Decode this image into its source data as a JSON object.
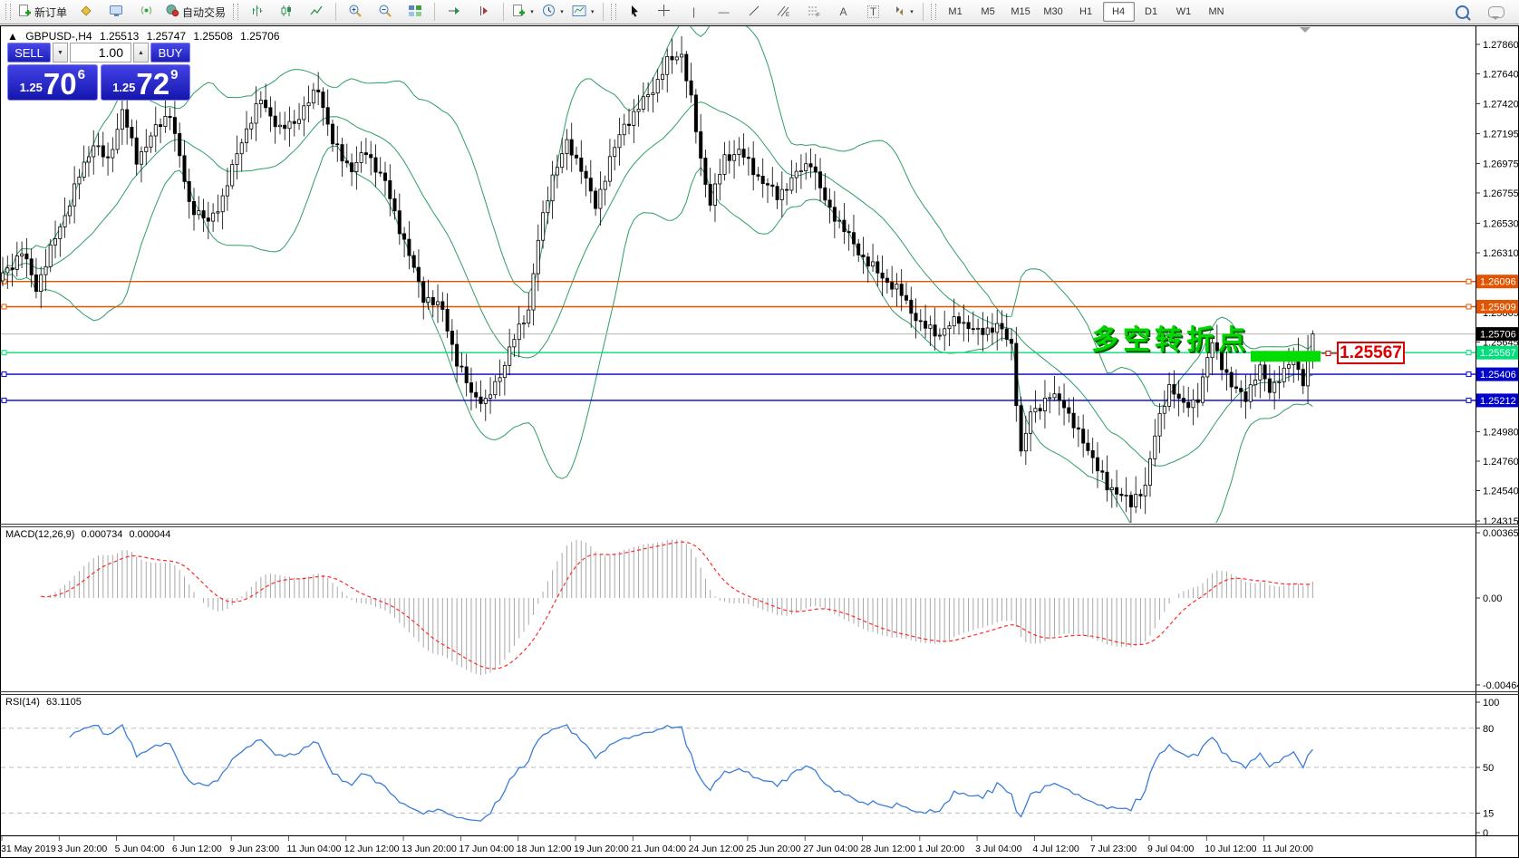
{
  "toolbar": {
    "new_order_label": "新订单",
    "autotrading_label": "自动交易",
    "glyphs": {
      "caret": "▾",
      "crosshair": "+",
      "vline": "|",
      "hline": "—",
      "trendline": "/",
      "channel": "//",
      "channel_sub": "E",
      "fibo_sub": "F",
      "text_tool": "A",
      "text_label_tool": "T",
      "arrows_tool": "◆"
    },
    "timeframes": [
      "M1",
      "M5",
      "M15",
      "M30",
      "H1",
      "H4",
      "D1",
      "W1",
      "MN"
    ],
    "active_timeframe": "H4"
  },
  "header": {
    "marker": "▲",
    "symbol": "GBPUSD-,H4",
    "open": "1.25513",
    "high": "1.25747",
    "low": "1.25508",
    "close": "1.25706"
  },
  "trade_panel": {
    "sell_label": "SELL",
    "buy_label": "BUY",
    "volume": "1.00",
    "spin_down": "▼",
    "spin_up": "▲",
    "sell": {
      "small": "1.25",
      "big": "70",
      "sup": "6"
    },
    "buy": {
      "small": "1.25",
      "big": "72",
      "sup": "9"
    }
  },
  "annotation": {
    "text": "多空转折点",
    "color": "#00d600"
  },
  "callout": {
    "text": "1.25567",
    "color": "#dd0000"
  },
  "indicators": {
    "macd": {
      "name": "MACD(12,26,9)",
      "v1": "0.000734",
      "v2": "0.000044"
    },
    "rsi": {
      "name": "RSI(14)",
      "value": "63.1105"
    }
  },
  "chart_data": {
    "type": "candlestick",
    "symbol": "GBPUSD",
    "timeframe": "H4",
    "title": "GBPUSD-,H4",
    "price_axis_ticks": [
      1.2786,
      1.2764,
      1.2742,
      1.27195,
      1.26975,
      1.26755,
      1.2653,
      1.2631,
      1.25865,
      1.25645,
      1.2498,
      1.2476,
      1.2454,
      1.24315
    ],
    "current_price": {
      "value": 1.25706,
      "label": "1.25706",
      "line_color": "#b5b5b5",
      "badge_color": "#000000"
    },
    "hlines": [
      {
        "price": 1.26096,
        "label": "1.26096",
        "color": "#e25400"
      },
      {
        "price": 1.25909,
        "label": "1.25909",
        "color": "#e25400"
      },
      {
        "price": 1.25567,
        "label": "1.25567",
        "color": "#00e07a"
      },
      {
        "price": 1.25406,
        "label": "1.25406",
        "color": "#0000cc"
      },
      {
        "price": 1.25212,
        "label": "1.25212",
        "color": "#0000cc"
      }
    ],
    "highlight_rect": {
      "price_top": 1.2558,
      "price_bottom": 1.255,
      "color": "#00dd00"
    },
    "bollinger_color": "#2f9e64",
    "close_anchors": [
      [
        0,
        1.2615
      ],
      [
        4,
        1.2632
      ],
      [
        7,
        1.2604
      ],
      [
        11,
        1.2642
      ],
      [
        16,
        1.2688
      ],
      [
        19,
        1.2712
      ],
      [
        22,
        1.2698
      ],
      [
        25,
        1.2738
      ],
      [
        28,
        1.27
      ],
      [
        32,
        1.2722
      ],
      [
        35,
        1.2736
      ],
      [
        39,
        1.2668
      ],
      [
        43,
        1.2652
      ],
      [
        46,
        1.2672
      ],
      [
        50,
        1.2716
      ],
      [
        54,
        1.2744
      ],
      [
        58,
        1.2722
      ],
      [
        62,
        1.2733
      ],
      [
        66,
        1.2753
      ],
      [
        69,
        1.2712
      ],
      [
        73,
        1.2694
      ],
      [
        76,
        1.2706
      ],
      [
        80,
        1.2682
      ],
      [
        84,
        1.264
      ],
      [
        88,
        1.2598
      ],
      [
        92,
        1.2588
      ],
      [
        95,
        1.255
      ],
      [
        98,
        1.2528
      ],
      [
        101,
        1.2518
      ],
      [
        104,
        1.254
      ],
      [
        107,
        1.2568
      ],
      [
        110,
        1.259
      ],
      [
        112,
        1.264
      ],
      [
        115,
        1.2688
      ],
      [
        118,
        1.2712
      ],
      [
        121,
        1.2696
      ],
      [
        124,
        1.2664
      ],
      [
        127,
        1.27
      ],
      [
        130,
        1.2726
      ],
      [
        133,
        1.274
      ],
      [
        136,
        1.2752
      ],
      [
        139,
        1.2772
      ],
      [
        142,
        1.278
      ],
      [
        144,
        1.2745
      ],
      [
        146,
        1.27
      ],
      [
        148,
        1.2668
      ],
      [
        151,
        1.27
      ],
      [
        154,
        1.2708
      ],
      [
        158,
        1.2688
      ],
      [
        162,
        1.2672
      ],
      [
        166,
        1.269
      ],
      [
        169,
        1.27
      ],
      [
        172,
        1.2668
      ],
      [
        176,
        1.2648
      ],
      [
        180,
        1.2628
      ],
      [
        184,
        1.2612
      ],
      [
        188,
        1.26
      ],
      [
        192,
        1.2578
      ],
      [
        196,
        1.257
      ],
      [
        200,
        1.2582
      ],
      [
        204,
        1.2572
      ],
      [
        208,
        1.2576
      ],
      [
        211,
        1.2562
      ],
      [
        213,
        1.2482
      ],
      [
        215,
        1.2512
      ],
      [
        219,
        1.2524
      ],
      [
        222,
        1.2518
      ],
      [
        225,
        1.2496
      ],
      [
        228,
        1.248
      ],
      [
        231,
        1.2455
      ],
      [
        234,
        1.2452
      ],
      [
        236,
        1.2443
      ],
      [
        239,
        1.246
      ],
      [
        241,
        1.2495
      ],
      [
        244,
        1.2532
      ],
      [
        247,
        1.2516
      ],
      [
        250,
        1.2524
      ],
      [
        253,
        1.2565
      ],
      [
        255,
        1.2548
      ],
      [
        257,
        1.253
      ],
      [
        260,
        1.2525
      ],
      [
        263,
        1.2545
      ],
      [
        265,
        1.253
      ],
      [
        268,
        1.254
      ],
      [
        270,
        1.2555
      ],
      [
        272,
        1.2535
      ],
      [
        274,
        1.25706
      ]
    ],
    "macd_panel": {
      "axis_labels": [
        "0.003658",
        "0.00",
        "-0.004645"
      ],
      "histogram_color": "#a8a8a8",
      "signal_color": "#ff2a2a"
    },
    "rsi_panel": {
      "axis_labels": [
        "100",
        "80",
        "50",
        "15",
        "0"
      ],
      "levels": [
        80,
        50,
        15
      ],
      "line_color": "#3b7dd8"
    },
    "dates": [
      "31 May 2019",
      "3 Jun 20:00",
      "5 Jun 04:00",
      "6 Jun 12:00",
      "9 Jun 23:00",
      "11 Jun 04:00",
      "12 Jun 12:00",
      "13 Jun 20:00",
      "17 Jun 04:00",
      "18 Jun 12:00",
      "19 Jun 20:00",
      "21 Jun 04:00",
      "24 Jun 12:00",
      "25 Jun 20:00",
      "27 Jun 04:00",
      "28 Jun 12:00",
      "1 Jul 20:00",
      "3 Jul 04:00",
      "4 Jul 12:00",
      "7 Jul 23:00",
      "9 Jul 04:00",
      "10 Jul 12:00",
      "11 Jul 20:00"
    ]
  }
}
